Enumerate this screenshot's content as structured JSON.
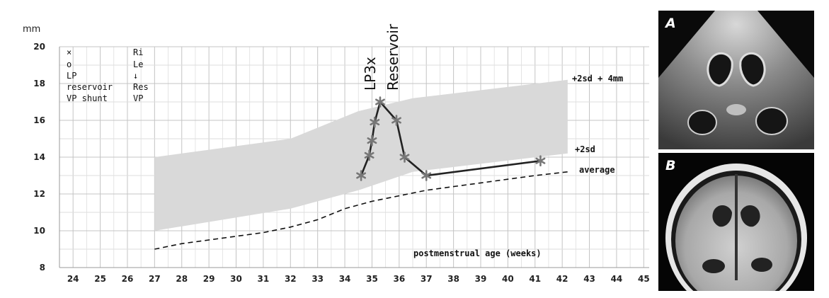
{
  "chart_data": {
    "type": "line",
    "ylabel": "mm",
    "xlabel": "postmenstrual age (weeks)",
    "xlim": [
      23.5,
      45.2
    ],
    "ylim": [
      8,
      20
    ],
    "x_ticks": [
      24,
      25,
      26,
      27,
      28,
      29,
      30,
      31,
      32,
      33,
      34,
      35,
      36,
      37,
      38,
      39,
      40,
      41,
      42,
      43,
      44,
      45
    ],
    "y_ticks": [
      8,
      10,
      12,
      14,
      16,
      18,
      20
    ],
    "grid": true,
    "legend_symbols": {
      "col1": [
        "×",
        "o",
        "LP",
        "reservoir",
        "VP shunt"
      ],
      "col2": [
        "Ri",
        "Le",
        "↓",
        "Res",
        "VP"
      ]
    },
    "reference_band": {
      "x": [
        27,
        32,
        34.5,
        36.5,
        42.2
      ],
      "upper": [
        14,
        15,
        16.5,
        17.2,
        18.2
      ],
      "lower": [
        10,
        11.2,
        12.2,
        13.2,
        14.2
      ]
    },
    "series": [
      {
        "label": "average",
        "style": "dashed",
        "x": [
          27,
          28,
          29,
          30,
          31,
          32,
          33,
          34,
          35,
          36,
          37,
          38,
          39,
          40,
          41,
          42.2
        ],
        "y": [
          9.0,
          9.3,
          9.5,
          9.7,
          9.9,
          10.2,
          10.6,
          11.2,
          11.6,
          11.9,
          12.2,
          12.4,
          12.6,
          12.8,
          13.0,
          13.2
        ]
      },
      {
        "style": "asterisk-line",
        "x": [
          34.6,
          34.9,
          35.0,
          35.1,
          35.3,
          35.9,
          36.2,
          37.0,
          41.2
        ],
        "y": [
          13.0,
          14.1,
          14.9,
          15.9,
          17.0,
          16.0,
          14.0,
          13.0,
          13.8
        ]
      }
    ],
    "band_labels": [
      "+2sd + 4mm",
      "+2sd"
    ],
    "annotations": [
      "LP3x",
      "Reservoir"
    ]
  },
  "images": {
    "panel_a_label": "A",
    "panel_b_label": "B"
  }
}
